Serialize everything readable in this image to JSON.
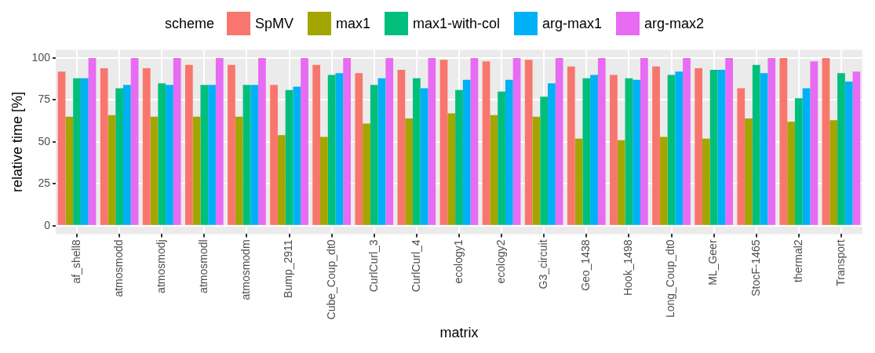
{
  "chart_data": {
    "type": "bar",
    "xlabel": "matrix",
    "ylabel": "relative time [%]",
    "legend_title": "scheme",
    "legend": "top",
    "grid": true,
    "categories": [
      "af_shell8",
      "atmosmodd",
      "atmosmodj",
      "atmosmodl",
      "atmosmodm",
      "Bump_2911",
      "Cube_Coup_dt0",
      "CurlCurl_3",
      "CurlCurl_4",
      "ecology1",
      "ecology2",
      "G3_circuit",
      "Geo_1438",
      "Hook_1498",
      "Long_Coup_dt0",
      "ML_Geer",
      "StocF-1465",
      "thermal2",
      "Transport"
    ],
    "ylim": [
      -5,
      105
    ],
    "yticks": [
      0,
      25,
      50,
      75,
      100
    ],
    "series": [
      {
        "name": "SpMV",
        "color": "#f8766d",
        "values": [
          92,
          94,
          94,
          96,
          96,
          84,
          96,
          91,
          93,
          99,
          98,
          99,
          95,
          90,
          95,
          94,
          82,
          100,
          100
        ]
      },
      {
        "name": "max1",
        "color": "#a3a500",
        "values": [
          65,
          66,
          65,
          65,
          65,
          54,
          53,
          61,
          64,
          67,
          66,
          65,
          52,
          51,
          53,
          52,
          64,
          62,
          63
        ]
      },
      {
        "name": "max1-with-col",
        "color": "#00bf7d",
        "values": [
          88,
          82,
          85,
          84,
          84,
          81,
          90,
          84,
          88,
          81,
          80,
          77,
          88,
          88,
          90,
          93,
          96,
          76,
          91
        ]
      },
      {
        "name": "arg-max1",
        "color": "#00b0f6",
        "values": [
          88,
          84,
          84,
          84,
          84,
          83,
          91,
          88,
          82,
          87,
          87,
          85,
          90,
          87,
          92,
          93,
          91,
          82,
          86
        ]
      },
      {
        "name": "arg-max2",
        "color": "#e76bf3",
        "values": [
          100,
          100,
          100,
          100,
          100,
          100,
          100,
          100,
          100,
          100,
          100,
          100,
          100,
          100,
          100,
          100,
          100,
          98,
          92
        ]
      }
    ]
  }
}
